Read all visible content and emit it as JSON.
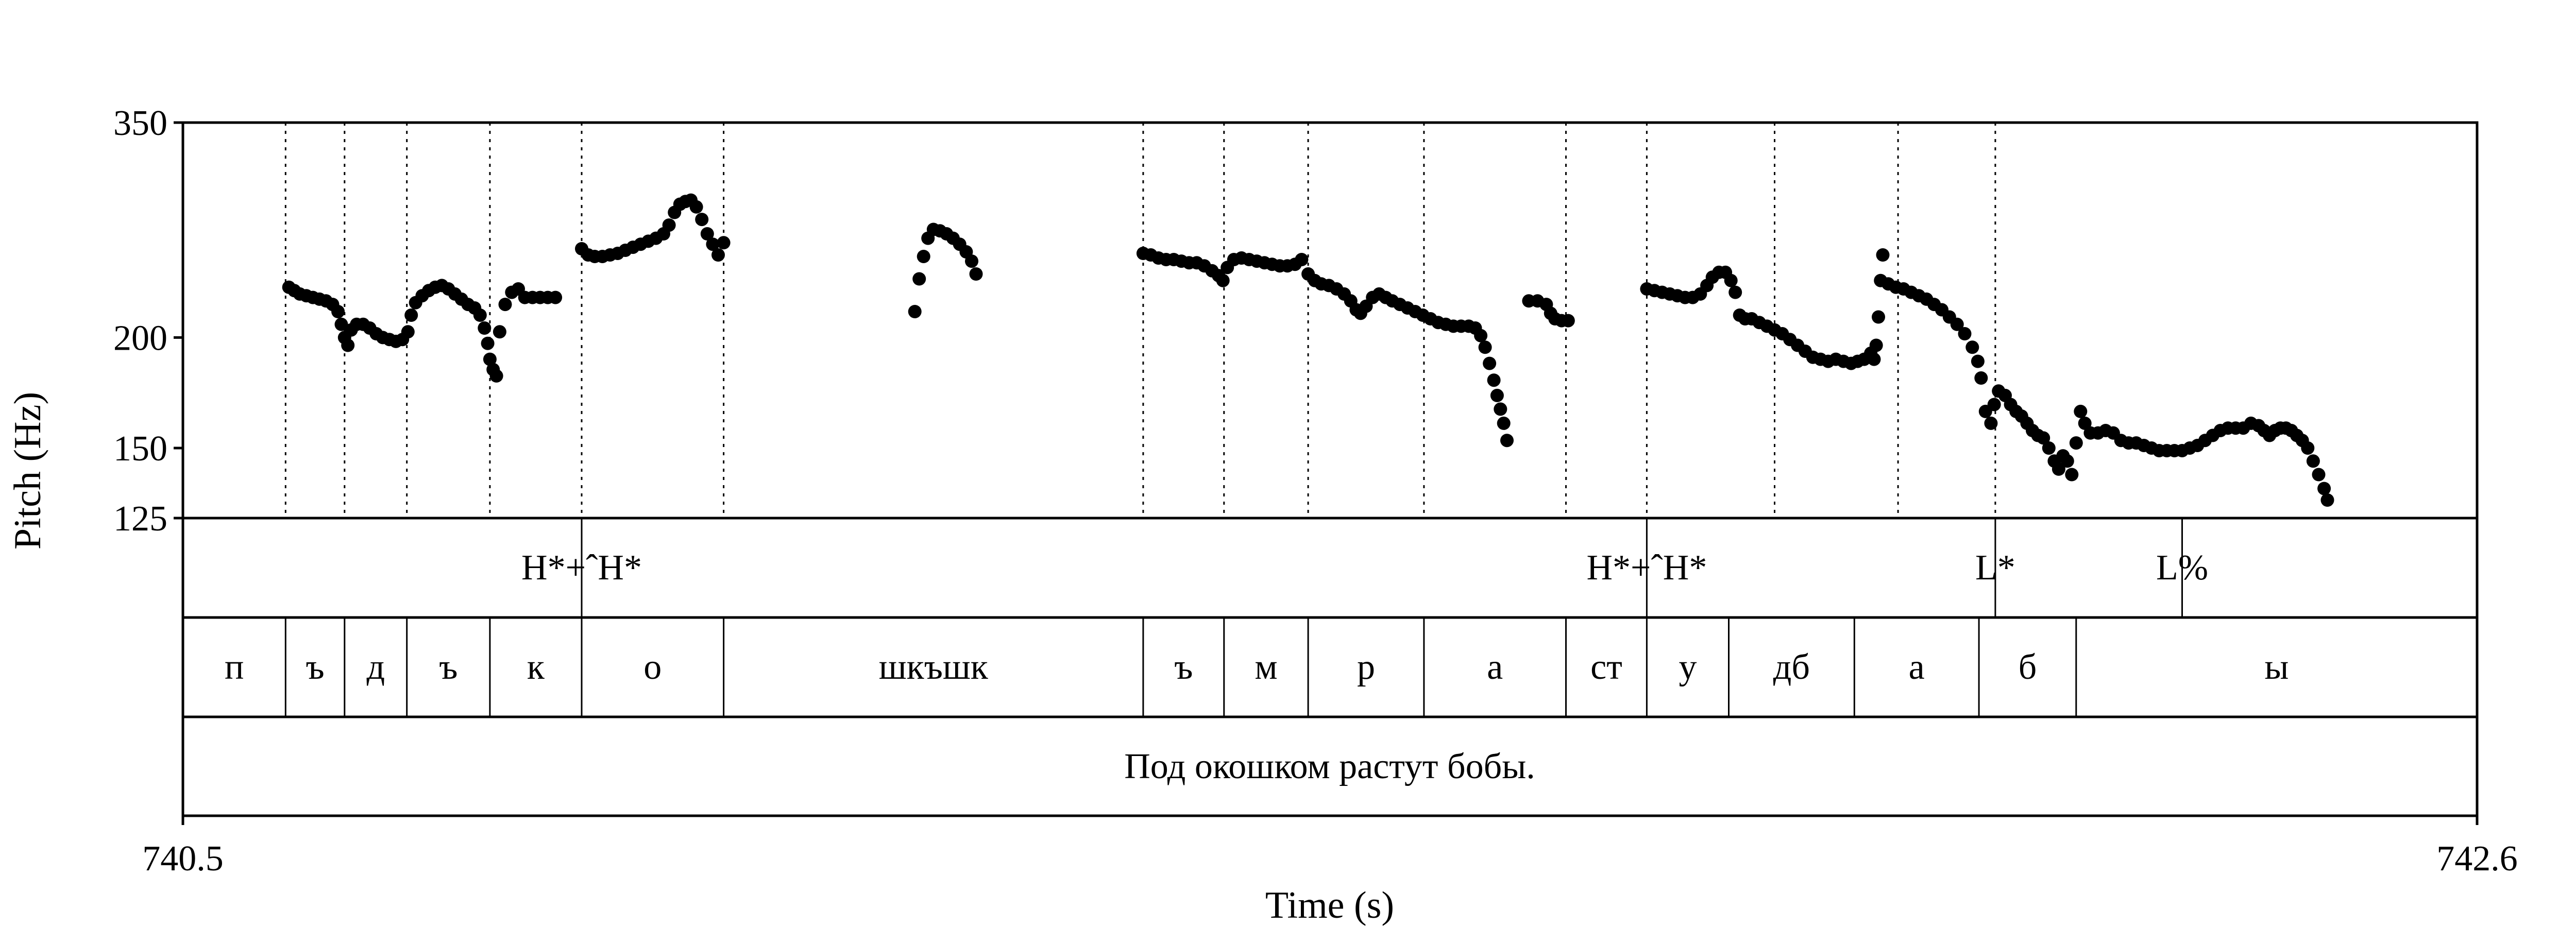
{
  "chart_data": {
    "type": "scatter",
    "xlabel": "Time (s)",
    "ylabel": "Pitch (Hz)",
    "xlim": [
      740.5,
      742.6
    ],
    "ylim": [
      125,
      350
    ],
    "y_scale": "log",
    "x_tick_labels": [
      "740.5",
      "742.6"
    ],
    "y_tick_labels": [
      "350",
      "200",
      "150",
      "125"
    ],
    "y_ticks": [
      350,
      200,
      150,
      125
    ],
    "vertical_guides": [
      740.594,
      740.648,
      740.705,
      740.781,
      740.865,
      740.995,
      741.379,
      741.453,
      741.53,
      741.636,
      741.766,
      741.84,
      741.957,
      742.07,
      742.159
    ],
    "tones": [
      {
        "label": "H*+ˆH*",
        "time": 740.865
      },
      {
        "label": "H*+ˆH*",
        "time": 741.84
      },
      {
        "label": "L*",
        "time": 742.159
      },
      {
        "label": "L%",
        "time": 742.33
      }
    ],
    "segments": [
      {
        "label": "п",
        "start": 740.5,
        "end": 740.594
      },
      {
        "label": "ъ",
        "start": 740.594,
        "end": 740.648
      },
      {
        "label": "д",
        "start": 740.648,
        "end": 740.705
      },
      {
        "label": "ъ",
        "start": 740.705,
        "end": 740.781
      },
      {
        "label": "к",
        "start": 740.781,
        "end": 740.865
      },
      {
        "label": "о",
        "start": 740.865,
        "end": 740.995
      },
      {
        "label": "шкъшк",
        "start": 740.995,
        "end": 741.379
      },
      {
        "label": "ъ",
        "start": 741.379,
        "end": 741.453
      },
      {
        "label": "м",
        "start": 741.453,
        "end": 741.53
      },
      {
        "label": "р",
        "start": 741.53,
        "end": 741.636
      },
      {
        "label": "а",
        "start": 741.636,
        "end": 741.766
      },
      {
        "label": "ст",
        "start": 741.766,
        "end": 741.84
      },
      {
        "label": "у",
        "start": 741.84,
        "end": 741.915
      },
      {
        "label": "дб",
        "start": 741.915,
        "end": 742.03
      },
      {
        "label": "а",
        "start": 742.03,
        "end": 742.144
      },
      {
        "label": "б",
        "start": 742.144,
        "end": 742.233
      },
      {
        "label": "ы",
        "start": 742.233,
        "end": 742.6
      }
    ],
    "sentence": "Под окошком растут бобы.",
    "contour": [
      [
        740.597,
        228
      ],
      [
        740.602,
        226
      ],
      [
        740.607,
        224
      ],
      [
        740.613,
        223
      ],
      [
        740.619,
        222
      ],
      [
        740.625,
        221
      ],
      [
        740.631,
        220
      ],
      [
        740.637,
        218
      ],
      [
        740.642,
        214
      ],
      [
        740.645,
        207
      ],
      [
        740.648,
        200
      ],
      [
        740.651,
        196
      ],
      [
        740.654,
        204
      ],
      [
        740.659,
        207
      ],
      [
        740.665,
        207
      ],
      [
        740.671,
        205
      ],
      [
        740.677,
        202
      ],
      [
        740.683,
        200
      ],
      [
        740.689,
        199
      ],
      [
        740.695,
        198
      ],
      [
        740.701,
        199
      ],
      [
        740.706,
        203
      ],
      [
        740.709,
        212
      ],
      [
        740.713,
        219
      ],
      [
        740.719,
        223
      ],
      [
        740.725,
        226
      ],
      [
        740.731,
        228
      ],
      [
        740.737,
        229
      ],
      [
        740.743,
        227
      ],
      [
        740.749,
        224
      ],
      [
        740.755,
        221
      ],
      [
        740.761,
        218
      ],
      [
        740.767,
        216
      ],
      [
        740.772,
        212
      ],
      [
        740.776,
        205
      ],
      [
        740.779,
        197
      ],
      [
        740.781,
        189
      ],
      [
        740.784,
        184
      ],
      [
        740.787,
        181
      ],
      [
        740.79,
        203
      ],
      [
        740.795,
        218
      ],
      [
        740.801,
        225
      ],
      [
        740.807,
        227
      ],
      [
        740.813,
        222
      ],
      [
        740.82,
        222
      ],
      [
        740.827,
        222
      ],
      [
        740.834,
        222
      ],
      [
        740.841,
        222
      ],
      [
        740.865,
        252
      ],
      [
        740.871,
        248
      ],
      [
        740.877,
        247
      ],
      [
        740.884,
        247
      ],
      [
        740.891,
        248
      ],
      [
        740.898,
        249
      ],
      [
        740.905,
        251
      ],
      [
        740.912,
        253
      ],
      [
        740.919,
        255
      ],
      [
        740.926,
        257
      ],
      [
        740.933,
        259
      ],
      [
        740.94,
        262
      ],
      [
        740.945,
        268
      ],
      [
        740.95,
        277
      ],
      [
        740.955,
        283
      ],
      [
        740.96,
        285
      ],
      [
        740.965,
        286
      ],
      [
        740.97,
        281
      ],
      [
        740.975,
        272
      ],
      [
        740.98,
        262
      ],
      [
        740.985,
        255
      ],
      [
        740.99,
        248
      ],
      [
        740.995,
        256
      ],
      [
        741.17,
        214
      ],
      [
        741.174,
        233
      ],
      [
        741.178,
        247
      ],
      [
        741.182,
        259
      ],
      [
        741.187,
        265
      ],
      [
        741.193,
        264
      ],
      [
        741.199,
        262
      ],
      [
        741.205,
        259
      ],
      [
        741.211,
        255
      ],
      [
        741.217,
        250
      ],
      [
        741.222,
        244
      ],
      [
        741.226,
        236
      ],
      [
        741.379,
        249
      ],
      [
        741.386,
        248
      ],
      [
        741.393,
        246
      ],
      [
        741.4,
        245
      ],
      [
        741.407,
        245
      ],
      [
        741.414,
        244
      ],
      [
        741.421,
        243
      ],
      [
        741.428,
        243
      ],
      [
        741.435,
        241
      ],
      [
        741.442,
        238
      ],
      [
        741.448,
        235
      ],
      [
        741.452,
        232
      ],
      [
        741.456,
        240
      ],
      [
        741.462,
        245
      ],
      [
        741.469,
        246
      ],
      [
        741.476,
        245
      ],
      [
        741.483,
        244
      ],
      [
        741.49,
        243
      ],
      [
        741.497,
        242
      ],
      [
        741.504,
        241
      ],
      [
        741.511,
        241
      ],
      [
        741.518,
        242
      ],
      [
        741.524,
        245
      ],
      [
        741.53,
        236
      ],
      [
        741.536,
        232
      ],
      [
        741.542,
        230
      ],
      [
        741.549,
        229
      ],
      [
        741.556,
        227
      ],
      [
        741.563,
        224
      ],
      [
        741.569,
        220
      ],
      [
        741.574,
        215
      ],
      [
        741.578,
        213
      ],
      [
        741.583,
        217
      ],
      [
        741.589,
        222
      ],
      [
        741.595,
        224
      ],
      [
        741.601,
        222
      ],
      [
        741.607,
        220
      ],
      [
        741.614,
        218
      ],
      [
        741.621,
        216
      ],
      [
        741.628,
        214
      ],
      [
        741.635,
        212
      ],
      [
        741.642,
        210
      ],
      [
        741.649,
        208
      ],
      [
        741.656,
        207
      ],
      [
        741.663,
        206
      ],
      [
        741.67,
        206
      ],
      [
        741.677,
        206
      ],
      [
        741.683,
        205
      ],
      [
        741.688,
        201
      ],
      [
        741.692,
        195
      ],
      [
        741.696,
        187
      ],
      [
        741.7,
        179
      ],
      [
        741.703,
        172
      ],
      [
        741.706,
        166
      ],
      [
        741.709,
        160
      ],
      [
        741.712,
        153
      ],
      [
        741.732,
        220
      ],
      [
        741.74,
        220
      ],
      [
        741.748,
        218
      ],
      [
        741.752,
        213
      ],
      [
        741.756,
        210
      ],
      [
        741.762,
        209
      ],
      [
        741.768,
        209
      ],
      [
        741.84,
        227
      ],
      [
        741.847,
        226
      ],
      [
        741.854,
        225
      ],
      [
        741.861,
        224
      ],
      [
        741.868,
        223
      ],
      [
        741.875,
        222
      ],
      [
        741.882,
        222
      ],
      [
        741.889,
        224
      ],
      [
        741.895,
        229
      ],
      [
        741.9,
        234
      ],
      [
        741.906,
        237
      ],
      [
        741.912,
        237
      ],
      [
        741.917,
        232
      ],
      [
        741.921,
        225
      ],
      [
        741.925,
        212
      ],
      [
        741.93,
        210
      ],
      [
        741.936,
        210
      ],
      [
        741.943,
        208
      ],
      [
        741.95,
        206
      ],
      [
        741.957,
        204
      ],
      [
        741.964,
        202
      ],
      [
        741.971,
        199
      ],
      [
        741.978,
        196
      ],
      [
        741.985,
        193
      ],
      [
        741.992,
        190
      ],
      [
        741.999,
        189
      ],
      [
        742.006,
        188
      ],
      [
        742.013,
        189
      ],
      [
        742.02,
        188
      ],
      [
        742.027,
        187
      ],
      [
        742.033,
        188
      ],
      [
        742.039,
        189
      ],
      [
        742.045,
        192
      ],
      [
        742.048,
        189
      ],
      [
        742.05,
        196
      ],
      [
        742.052,
        211
      ],
      [
        742.054,
        232
      ],
      [
        742.056,
        248
      ],
      [
        742.061,
        230
      ],
      [
        742.068,
        228
      ],
      [
        742.075,
        227
      ],
      [
        742.082,
        225
      ],
      [
        742.089,
        223
      ],
      [
        742.096,
        221
      ],
      [
        742.103,
        218
      ],
      [
        742.11,
        215
      ],
      [
        742.117,
        211
      ],
      [
        742.124,
        207
      ],
      [
        742.131,
        202
      ],
      [
        742.138,
        195
      ],
      [
        742.143,
        188
      ],
      [
        742.146,
        180
      ],
      [
        742.15,
        165
      ],
      [
        742.155,
        160
      ],
      [
        742.158,
        168
      ],
      [
        742.162,
        174
      ],
      [
        742.168,
        172
      ],
      [
        742.173,
        168
      ],
      [
        742.178,
        165
      ],
      [
        742.183,
        163
      ],
      [
        742.188,
        160
      ],
      [
        742.193,
        157
      ],
      [
        742.198,
        155
      ],
      [
        742.203,
        154
      ],
      [
        742.208,
        150
      ],
      [
        742.213,
        145
      ],
      [
        742.217,
        142
      ],
      [
        742.221,
        147
      ],
      [
        742.225,
        145
      ],
      [
        742.229,
        140
      ],
      [
        742.233,
        152
      ],
      [
        742.237,
        165
      ],
      [
        742.241,
        160
      ],
      [
        742.246,
        156
      ],
      [
        742.253,
        156
      ],
      [
        742.26,
        157
      ],
      [
        742.267,
        156
      ],
      [
        742.274,
        153
      ],
      [
        742.281,
        152
      ],
      [
        742.288,
        152
      ],
      [
        742.295,
        151
      ],
      [
        742.302,
        150
      ],
      [
        742.309,
        149
      ],
      [
        742.316,
        149
      ],
      [
        742.323,
        149
      ],
      [
        742.33,
        149
      ],
      [
        742.337,
        150
      ],
      [
        742.344,
        151
      ],
      [
        742.351,
        153
      ],
      [
        742.358,
        155
      ],
      [
        742.365,
        157
      ],
      [
        742.372,
        158
      ],
      [
        742.379,
        158
      ],
      [
        742.386,
        158
      ],
      [
        742.393,
        160
      ],
      [
        742.4,
        159
      ],
      [
        742.405,
        157
      ],
      [
        742.41,
        155
      ],
      [
        742.415,
        157
      ],
      [
        742.42,
        158
      ],
      [
        742.425,
        158
      ],
      [
        742.43,
        157
      ],
      [
        742.435,
        155
      ],
      [
        742.44,
        153
      ],
      [
        742.445,
        150
      ],
      [
        742.45,
        145
      ],
      [
        742.455,
        140
      ],
      [
        742.46,
        135
      ],
      [
        742.463,
        131
      ]
    ]
  }
}
